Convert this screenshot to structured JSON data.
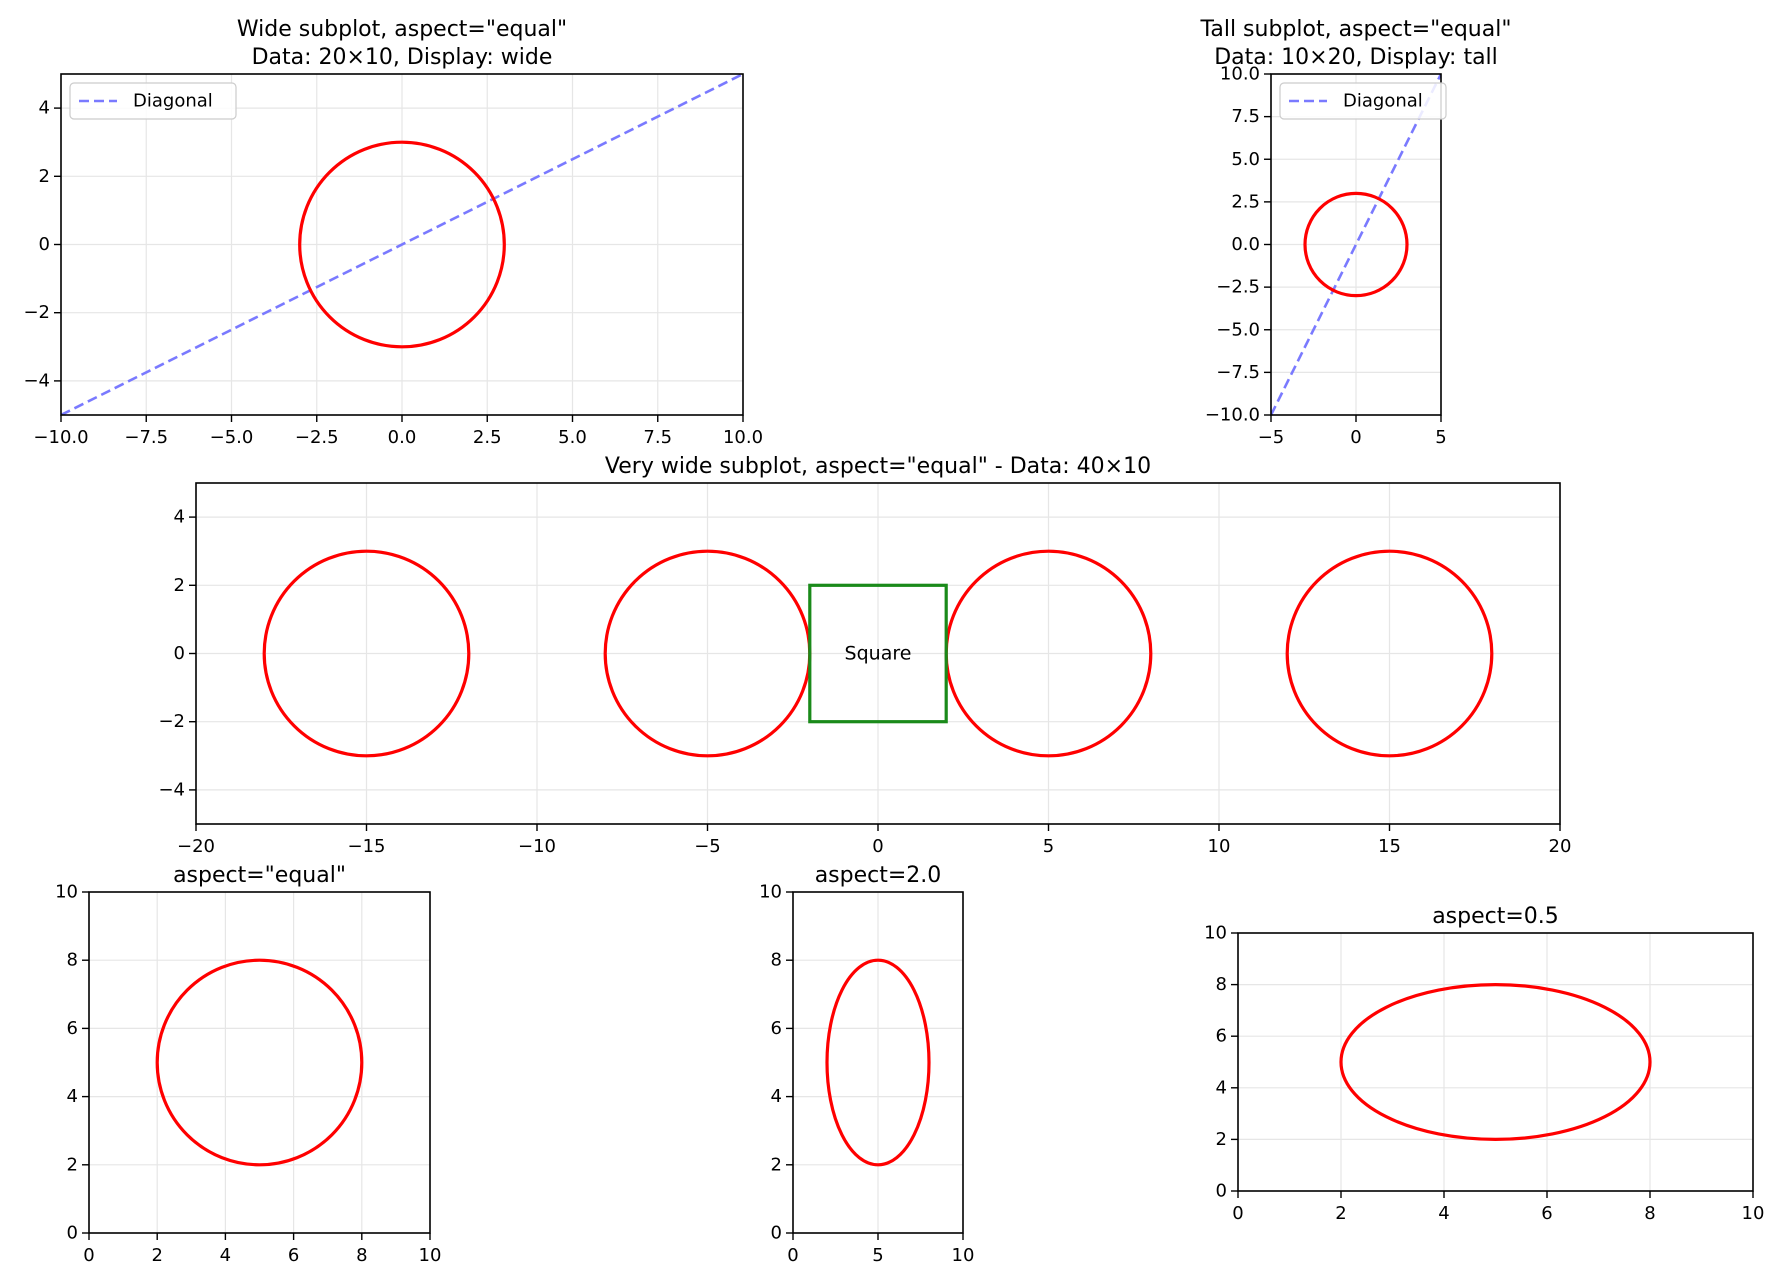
{
  "colors": {
    "circle": "#ff0000",
    "diagonal": "#7a7aff",
    "square": "#1a8a1a",
    "grid": "#e6e6e6",
    "axes": "#000000"
  },
  "chart_data": [
    {
      "id": "wide",
      "type": "line",
      "title_lines": [
        "Wide subplot, aspect=\"equal\"",
        "Data: 20×10, Display: wide"
      ],
      "xlim": [
        -10,
        10
      ],
      "ylim": [
        -5,
        5
      ],
      "xticks": [
        -10,
        -7.5,
        -5,
        -2.5,
        0,
        2.5,
        5,
        7.5,
        10
      ],
      "xtick_labels": [
        "−10.0",
        "−7.5",
        "−5.0",
        "−2.5",
        "0.0",
        "2.5",
        "5.0",
        "7.5",
        "10.0"
      ],
      "yticks": [
        -4,
        -2,
        0,
        2,
        4
      ],
      "ytick_labels": [
        "−4",
        "−2",
        "0",
        "2",
        "4"
      ],
      "grid": true,
      "legend": {
        "location": "upper-left",
        "entries": [
          "Diagonal"
        ]
      },
      "series": [
        {
          "name": "Diagonal",
          "kind": "line",
          "style": "dashed",
          "x": [
            -10,
            10
          ],
          "y": [
            -5,
            5
          ]
        },
        {
          "kind": "circle",
          "center": [
            0,
            0
          ],
          "radius": 3
        }
      ]
    },
    {
      "id": "tall",
      "type": "line",
      "title_lines": [
        "Tall subplot, aspect=\"equal\"",
        "Data: 10×20, Display: tall"
      ],
      "xlim": [
        -5,
        5
      ],
      "ylim": [
        -10,
        10
      ],
      "xticks": [
        -5,
        0,
        5
      ],
      "xtick_labels": [
        "−5",
        "0",
        "5"
      ],
      "yticks": [
        -10,
        -7.5,
        -5,
        -2.5,
        0,
        2.5,
        5,
        7.5,
        10
      ],
      "ytick_labels": [
        "−10.0",
        "−7.5",
        "−5.0",
        "−2.5",
        "0.0",
        "2.5",
        "5.0",
        "7.5",
        "10.0"
      ],
      "grid": true,
      "legend": {
        "location": "upper-left",
        "entries": [
          "Diagonal"
        ]
      },
      "series": [
        {
          "name": "Diagonal",
          "kind": "line",
          "style": "dashed",
          "x": [
            -5,
            5
          ],
          "y": [
            -10,
            10
          ]
        },
        {
          "kind": "circle",
          "center": [
            0,
            0
          ],
          "radius": 3
        }
      ]
    },
    {
      "id": "very-wide",
      "type": "line",
      "title_lines": [
        "Very wide subplot, aspect=\"equal\" - Data: 40×10"
      ],
      "xlim": [
        -20,
        20
      ],
      "ylim": [
        -5,
        5
      ],
      "xticks": [
        -20,
        -15,
        -10,
        -5,
        0,
        5,
        10,
        15,
        20
      ],
      "xtick_labels": [
        "−20",
        "−15",
        "−10",
        "−5",
        "0",
        "5",
        "10",
        "15",
        "20"
      ],
      "yticks": [
        -4,
        -2,
        0,
        2,
        4
      ],
      "ytick_labels": [
        "−4",
        "−2",
        "0",
        "2",
        "4"
      ],
      "grid": true,
      "series": [
        {
          "kind": "circle",
          "center": [
            -15,
            0
          ],
          "radius": 3
        },
        {
          "kind": "circle",
          "center": [
            -5,
            0
          ],
          "radius": 3
        },
        {
          "kind": "circle",
          "center": [
            5,
            0
          ],
          "radius": 3
        },
        {
          "kind": "circle",
          "center": [
            15,
            0
          ],
          "radius": 3
        },
        {
          "kind": "rect",
          "x": [
            -2,
            2
          ],
          "y": [
            -2,
            2
          ]
        }
      ],
      "annotations": [
        {
          "text": "Square",
          "x": 0,
          "y": 0
        }
      ]
    },
    {
      "id": "aspect-equal",
      "type": "line",
      "title_lines": [
        "aspect=\"equal\""
      ],
      "xlim": [
        0,
        10
      ],
      "ylim": [
        0,
        10
      ],
      "xticks": [
        0,
        2,
        4,
        6,
        8,
        10
      ],
      "xtick_labels": [
        "0",
        "2",
        "4",
        "6",
        "8",
        "10"
      ],
      "yticks": [
        0,
        2,
        4,
        6,
        8,
        10
      ],
      "ytick_labels": [
        "0",
        "2",
        "4",
        "6",
        "8",
        "10"
      ],
      "grid": true,
      "series": [
        {
          "kind": "circle",
          "center": [
            5,
            5
          ],
          "radius": 3
        }
      ]
    },
    {
      "id": "aspect-2",
      "type": "line",
      "title_lines": [
        "aspect=2.0"
      ],
      "xlim": [
        0,
        10
      ],
      "ylim": [
        0,
        10
      ],
      "xticks": [
        0,
        5,
        10
      ],
      "xtick_labels": [
        "0",
        "5",
        "10"
      ],
      "yticks": [
        0,
        2,
        4,
        6,
        8,
        10
      ],
      "ytick_labels": [
        "0",
        "2",
        "4",
        "6",
        "8",
        "10"
      ],
      "grid": true,
      "series": [
        {
          "kind": "circle",
          "center": [
            5,
            5
          ],
          "radius": 3
        }
      ]
    },
    {
      "id": "aspect-05",
      "type": "line",
      "title_lines": [
        "aspect=0.5"
      ],
      "xlim": [
        0,
        10
      ],
      "ylim": [
        0,
        10
      ],
      "xticks": [
        0,
        2,
        4,
        6,
        8,
        10
      ],
      "xtick_labels": [
        "0",
        "2",
        "4",
        "6",
        "8",
        "10"
      ],
      "yticks": [
        0,
        2,
        4,
        6,
        8,
        10
      ],
      "ytick_labels": [
        "0",
        "2",
        "4",
        "6",
        "8",
        "10"
      ],
      "grid": true,
      "series": [
        {
          "kind": "circle",
          "center": [
            5,
            5
          ],
          "radius": 3
        }
      ]
    }
  ]
}
